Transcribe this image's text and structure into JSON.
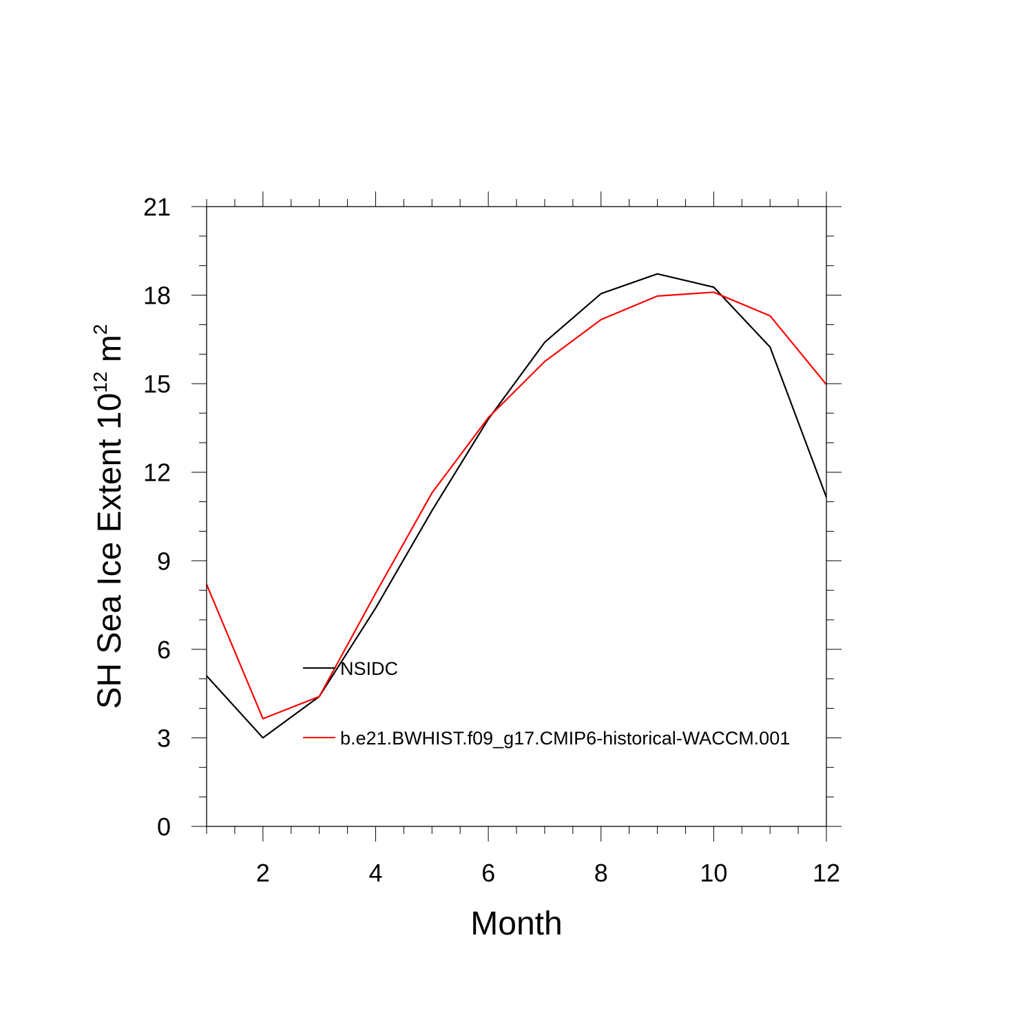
{
  "chart_data": {
    "type": "line",
    "title": "",
    "xlabel": "Month",
    "ylabel": {
      "prefix": "SH Sea Ice Extent 10",
      "exponent": "12",
      "unit": " m",
      "unit_exponent": "2"
    },
    "xlim": [
      1,
      12
    ],
    "ylim": [
      0,
      21
    ],
    "xticks": [
      "2",
      "4",
      "6",
      "8",
      "10",
      "12"
    ],
    "yticks": [
      "0",
      "3",
      "6",
      "9",
      "12",
      "15",
      "18",
      "21"
    ],
    "x": [
      1,
      2,
      3,
      4,
      5,
      6,
      7,
      8,
      9,
      10,
      11,
      12
    ],
    "series": [
      {
        "name": "NSIDC",
        "color": "#000000",
        "values": [
          5.1,
          3.0,
          4.4,
          7.4,
          10.7,
          13.8,
          16.4,
          18.05,
          18.72,
          18.27,
          16.24,
          11.15
        ]
      },
      {
        "name": "b.e21.BWHIST.f09_g17.CMIP6-historical-WACCM.001",
        "color": "#ff0000",
        "values": [
          8.2,
          3.65,
          4.4,
          7.9,
          11.3,
          13.85,
          15.75,
          17.17,
          17.97,
          18.1,
          17.3,
          14.97
        ]
      }
    ],
    "legend_position": "lower-center",
    "grid": false
  }
}
